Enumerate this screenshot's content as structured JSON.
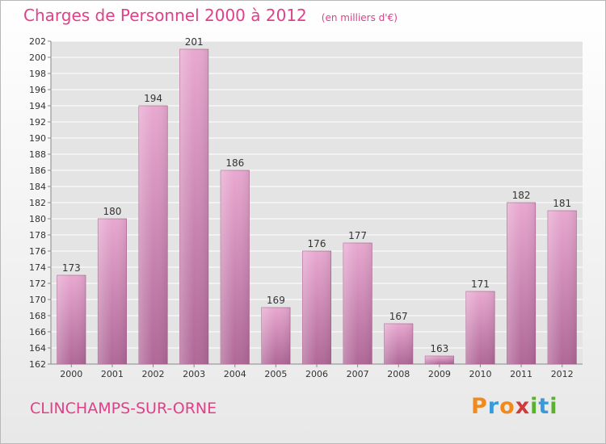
{
  "header": {
    "title": "Charges de Personnel 2000 à 2012",
    "subtitle": "(en milliers d'€)"
  },
  "footer": {
    "city": "CLINCHAMPS-SUR-ORNE",
    "logo": "Proxiti"
  },
  "colors": {
    "title": "#e0408a",
    "bar_light": "#e8a8d0",
    "bar_dark": "#b06898"
  },
  "chart_data": {
    "type": "bar",
    "categories": [
      "2000",
      "2001",
      "2002",
      "2003",
      "2004",
      "2005",
      "2006",
      "2007",
      "2008",
      "2009",
      "2010",
      "2011",
      "2012"
    ],
    "values": [
      173,
      180,
      194,
      201,
      186,
      169,
      176,
      177,
      167,
      163,
      171,
      182,
      181
    ],
    "ylim": [
      162,
      202
    ],
    "yticks": [
      162,
      164,
      166,
      168,
      170,
      172,
      174,
      176,
      178,
      180,
      182,
      184,
      186,
      188,
      190,
      192,
      194,
      196,
      198,
      200,
      202
    ],
    "grid": true
  }
}
